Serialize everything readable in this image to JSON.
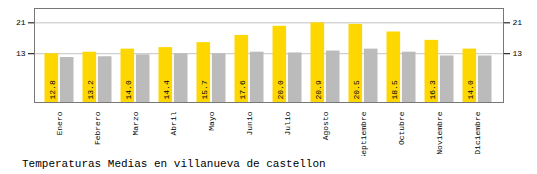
{
  "chart_data": {
    "type": "bar",
    "title": "Temperaturas Medias en villanueva de castellon",
    "categories": [
      "Enero",
      "Febrero",
      "Marzo",
      "Abril",
      "Mayo",
      "Junio",
      "Julio",
      "Agosto",
      "Septiembre",
      "Octubre",
      "Noviembre",
      "Diciembre"
    ],
    "series": [
      {
        "color": "#FFD700",
        "data_labels": true,
        "values": [
          12.8,
          13.2,
          14.0,
          14.4,
          15.7,
          17.6,
          20.0,
          20.9,
          20.5,
          18.5,
          16.3,
          14.0
        ],
        "value_labels": [
          "12.8",
          "13.2",
          "14.0",
          "14.4",
          "15.7",
          "17.6",
          "20.0",
          "20.9",
          "20.5",
          "18.5",
          "16.3",
          "14.0"
        ]
      },
      {
        "color": "#BBBBBB",
        "values": [
          11.8,
          12.0,
          12.5,
          12.8,
          12.8,
          13.2,
          13.0,
          13.5,
          14.0,
          13.2,
          12.2,
          12.2
        ]
      }
    ],
    "ylim": [
      0,
      24.662
    ],
    "yticks": [
      12.8,
      20.9
    ],
    "grid": true
  }
}
